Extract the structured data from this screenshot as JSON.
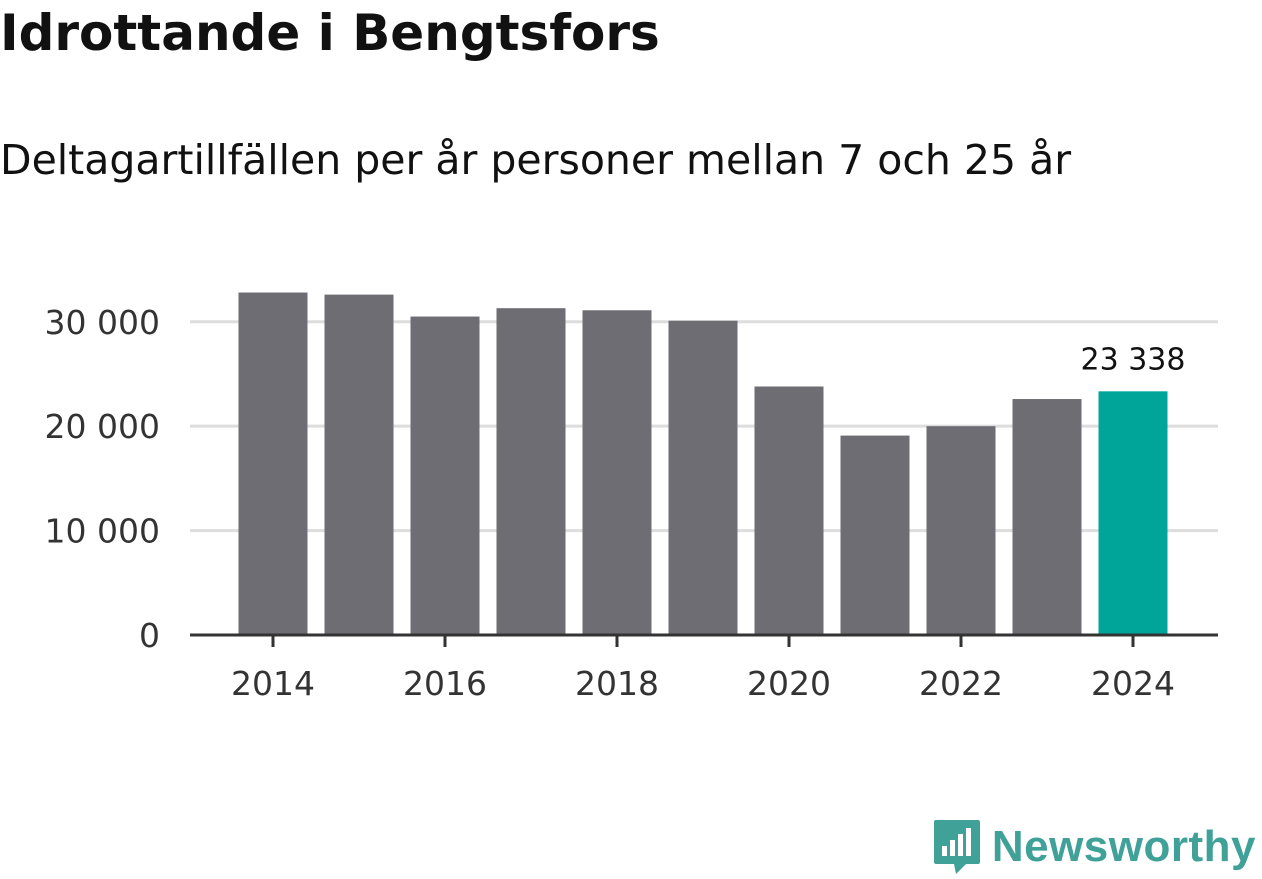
{
  "header": {
    "title": "Idrottande i Bengtsfors",
    "subtitle": "Deltagartillfällen per år personer mellan 7 och 25 år"
  },
  "brand": {
    "name": "Newsworthy",
    "icon": "newsworthy-logo-icon"
  },
  "colors": {
    "bar": "#6e6d73",
    "highlight": "#00a59a",
    "grid": "#dddddd",
    "axis": "#333333",
    "brand": "#3fa198"
  },
  "chart_data": {
    "type": "bar",
    "title": "Idrottande i Bengtsfors",
    "subtitle": "Deltagartillfällen per år personer mellan 7 och 25 år",
    "xlabel": "",
    "ylabel": "",
    "categories": [
      "2014",
      "2015",
      "2016",
      "2017",
      "2018",
      "2019",
      "2020",
      "2021",
      "2022",
      "2023",
      "2024"
    ],
    "values": [
      32800,
      32600,
      30500,
      31300,
      31100,
      30100,
      23800,
      19100,
      20000,
      22600,
      23338
    ],
    "highlight_index": 10,
    "highlight_label": "23 338",
    "ylim": [
      0,
      34000
    ],
    "yticks": [
      0,
      10000,
      20000,
      30000
    ],
    "ytick_labels": [
      "0",
      "10 000",
      "20 000",
      "30 000"
    ],
    "xtick_labels": [
      "2014",
      "2016",
      "2018",
      "2020",
      "2022",
      "2024"
    ],
    "grid": true
  }
}
